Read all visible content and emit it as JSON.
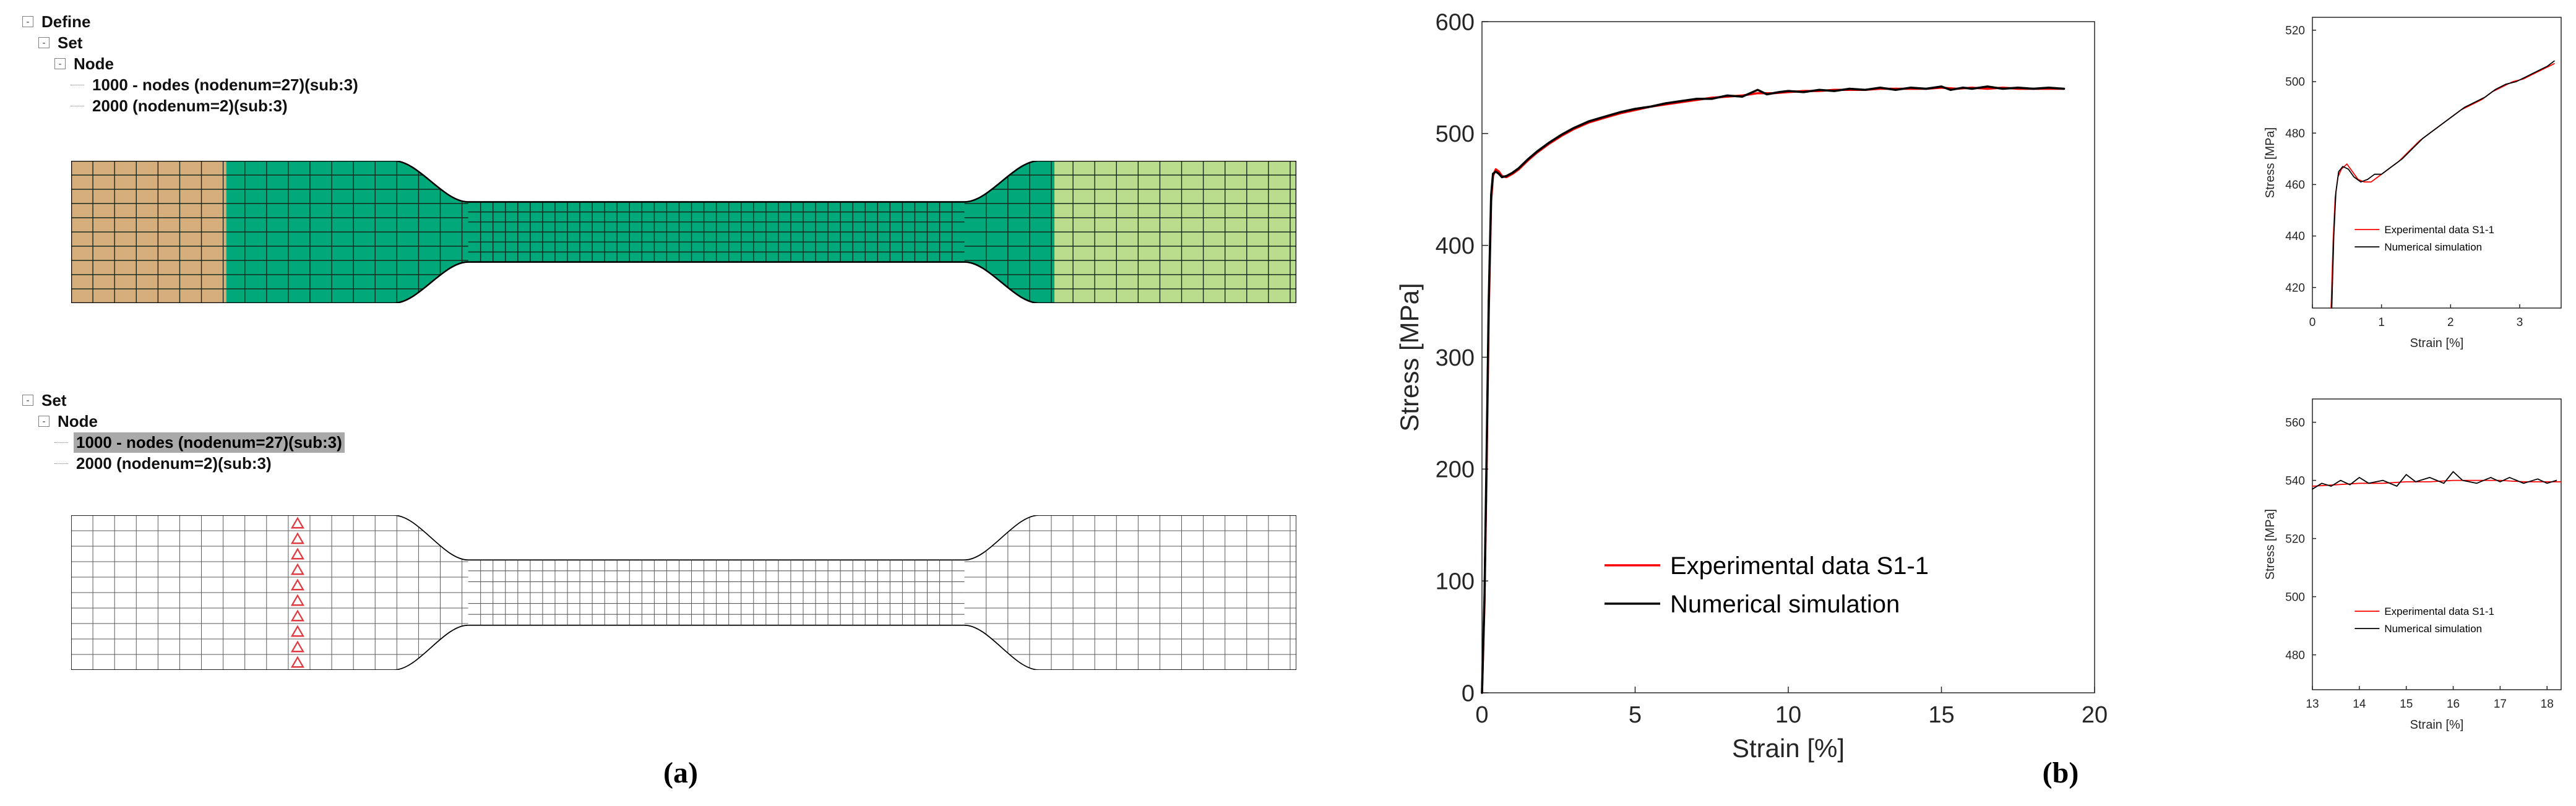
{
  "figure": {
    "label_a": "(a)",
    "label_b": "(b)"
  },
  "trees": [
    {
      "items": [
        {
          "label": "Define",
          "level": 0,
          "box": true,
          "selected": false
        },
        {
          "label": "Set",
          "level": 1,
          "box": true,
          "selected": false
        },
        {
          "label": "Node",
          "level": 2,
          "box": true,
          "selected": false
        },
        {
          "label": "1000 - nodes (nodenum=27)(sub:3)",
          "level": 3,
          "box": false,
          "selected": false
        },
        {
          "label": "2000 (nodenum=2)(sub:3)",
          "level": 3,
          "box": false,
          "selected": false
        }
      ]
    },
    {
      "items": [
        {
          "label": "Set",
          "level": 0,
          "box": true,
          "selected": false
        },
        {
          "label": "Node",
          "level": 1,
          "box": true,
          "selected": false
        },
        {
          "label": "1000 - nodes (nodenum=27)(sub:3)",
          "level": 2,
          "box": false,
          "selected": true
        },
        {
          "label": "2000 (nodenum=2)(sub:3)",
          "level": 2,
          "box": false,
          "selected": false
        }
      ]
    }
  ],
  "mesh": {
    "colors": {
      "left_grip": "#d6ae7b",
      "body": "#00a87a",
      "right_grip": "#b9dd8c",
      "outline": "#000000",
      "bc_marker": "#e0393f",
      "wire_fill": "#ffffff"
    }
  },
  "chart_data": [
    {
      "type": "line",
      "title": "",
      "xlabel": "Strain [%]",
      "ylabel": "Stress [MPa]",
      "xlim": [
        0,
        20
      ],
      "ylim": [
        0,
        600
      ],
      "xticks": [
        0,
        5,
        10,
        15,
        20
      ],
      "yticks": [
        0,
        100,
        200,
        300,
        400,
        500,
        600
      ],
      "legend": {
        "x": 0.2,
        "y": 0.81
      },
      "series": [
        {
          "name": "Experimental data S1-1",
          "color": "#ff0000",
          "points": [
            [
              0,
              0
            ],
            [
              0.08,
              80
            ],
            [
              0.15,
              200
            ],
            [
              0.22,
              340
            ],
            [
              0.3,
              440
            ],
            [
              0.36,
              462
            ],
            [
              0.45,
              468
            ],
            [
              0.55,
              466
            ],
            [
              0.65,
              462
            ],
            [
              0.8,
              461
            ],
            [
              1.0,
              464
            ],
            [
              1.2,
              468
            ],
            [
              1.5,
              476
            ],
            [
              1.8,
              483
            ],
            [
              2.2,
              491
            ],
            [
              2.6,
              498
            ],
            [
              3.0,
              504
            ],
            [
              3.5,
              510
            ],
            [
              4.0,
              514
            ],
            [
              4.5,
              518
            ],
            [
              5.0,
              521
            ],
            [
              5.5,
              524
            ],
            [
              6.0,
              526
            ],
            [
              6.5,
              528
            ],
            [
              7.0,
              530
            ],
            [
              7.5,
              532
            ],
            [
              8.0,
              533
            ],
            [
              8.5,
              534
            ],
            [
              9.0,
              536
            ],
            [
              9.5,
              536
            ],
            [
              10.0,
              537
            ],
            [
              10.5,
              538
            ],
            [
              11.0,
              538
            ],
            [
              11.5,
              539
            ],
            [
              12.0,
              539
            ],
            [
              12.5,
              539
            ],
            [
              13.0,
              540
            ],
            [
              13.5,
              540
            ],
            [
              14.0,
              540
            ],
            [
              14.5,
              540
            ],
            [
              15.0,
              541
            ],
            [
              15.5,
              540
            ],
            [
              16.0,
              541
            ],
            [
              16.5,
              540
            ],
            [
              17.0,
              541
            ],
            [
              17.5,
              540
            ],
            [
              18.0,
              540
            ],
            [
              18.5,
              540
            ],
            [
              19.0,
              540
            ]
          ]
        },
        {
          "name": "Numerical simulation",
          "color": "#000000",
          "points": [
            [
              0,
              0
            ],
            [
              0.08,
              85
            ],
            [
              0.15,
              210
            ],
            [
              0.22,
              350
            ],
            [
              0.3,
              445
            ],
            [
              0.36,
              464
            ],
            [
              0.45,
              466
            ],
            [
              0.55,
              464
            ],
            [
              0.65,
              461
            ],
            [
              0.8,
              462
            ],
            [
              1.0,
              465
            ],
            [
              1.2,
              469
            ],
            [
              1.5,
              477
            ],
            [
              1.8,
              484
            ],
            [
              2.2,
              492
            ],
            [
              2.6,
              499
            ],
            [
              3.0,
              505
            ],
            [
              3.5,
              511
            ],
            [
              4.0,
              515
            ],
            [
              4.5,
              519
            ],
            [
              5.0,
              522
            ],
            [
              5.5,
              524
            ],
            [
              6.0,
              527
            ],
            [
              6.5,
              529
            ],
            [
              7.0,
              531
            ],
            [
              7.5,
              531
            ],
            [
              8.0,
              534
            ],
            [
              8.5,
              533
            ],
            [
              9.0,
              539
            ],
            [
              9.3,
              535
            ],
            [
              9.7,
              537
            ],
            [
              10.0,
              538
            ],
            [
              10.5,
              537
            ],
            [
              11.0,
              539
            ],
            [
              11.5,
              538
            ],
            [
              12.0,
              540
            ],
            [
              12.5,
              539
            ],
            [
              13.0,
              541
            ],
            [
              13.5,
              539
            ],
            [
              14.0,
              541
            ],
            [
              14.5,
              540
            ],
            [
              15.0,
              542
            ],
            [
              15.3,
              539
            ],
            [
              15.7,
              541
            ],
            [
              16.0,
              540
            ],
            [
              16.5,
              542
            ],
            [
              17.0,
              540
            ],
            [
              17.5,
              541
            ],
            [
              18.0,
              540
            ],
            [
              18.5,
              541
            ],
            [
              19.0,
              540
            ]
          ]
        }
      ]
    },
    {
      "type": "line",
      "title": "",
      "xlabel": "Strain [%]",
      "ylabel": "Stress [MPa]",
      "xlim": [
        0,
        3.6
      ],
      "ylim": [
        412,
        525
      ],
      "xticks": [
        0,
        1,
        2,
        3
      ],
      "yticks": [
        420,
        440,
        460,
        480,
        500,
        520
      ],
      "legend": {
        "x": 0.17,
        "y": 0.73
      },
      "series": [
        {
          "name": "Experimental data S1-1",
          "color": "#ff0000",
          "points": [
            [
              0.27,
              412
            ],
            [
              0.3,
              438
            ],
            [
              0.33,
              455
            ],
            [
              0.37,
              463
            ],
            [
              0.42,
              466
            ],
            [
              0.5,
              468
            ],
            [
              0.58,
              465
            ],
            [
              0.66,
              462
            ],
            [
              0.75,
              461
            ],
            [
              0.85,
              461
            ],
            [
              0.95,
              463
            ],
            [
              1.05,
              465
            ],
            [
              1.15,
              467
            ],
            [
              1.25,
              469
            ],
            [
              1.4,
              473
            ],
            [
              1.55,
              477
            ],
            [
              1.7,
              480
            ],
            [
              1.85,
              483
            ],
            [
              2.0,
              486
            ],
            [
              2.15,
              489
            ],
            [
              2.3,
              491
            ],
            [
              2.45,
              493
            ],
            [
              2.6,
              496
            ],
            [
              2.75,
              498
            ],
            [
              2.9,
              500
            ],
            [
              3.05,
              501
            ],
            [
              3.2,
              503
            ],
            [
              3.35,
              505
            ],
            [
              3.5,
              507
            ]
          ]
        },
        {
          "name": "Numerical simulation",
          "color": "#000000",
          "points": [
            [
              0.28,
              412
            ],
            [
              0.31,
              440
            ],
            [
              0.34,
              457
            ],
            [
              0.38,
              465
            ],
            [
              0.44,
              467
            ],
            [
              0.52,
              466
            ],
            [
              0.6,
              463
            ],
            [
              0.7,
              461
            ],
            [
              0.8,
              462
            ],
            [
              0.9,
              464
            ],
            [
              1.0,
              464
            ],
            [
              1.1,
              466
            ],
            [
              1.2,
              468
            ],
            [
              1.3,
              470
            ],
            [
              1.45,
              474
            ],
            [
              1.6,
              478
            ],
            [
              1.75,
              481
            ],
            [
              1.9,
              484
            ],
            [
              2.05,
              487
            ],
            [
              2.2,
              490
            ],
            [
              2.35,
              492
            ],
            [
              2.5,
              494
            ],
            [
              2.65,
              497
            ],
            [
              2.8,
              499
            ],
            [
              2.95,
              500
            ],
            [
              3.1,
              502
            ],
            [
              3.25,
              504
            ],
            [
              3.4,
              506
            ],
            [
              3.5,
              508
            ]
          ]
        }
      ]
    },
    {
      "type": "line",
      "title": "",
      "xlabel": "Strain [%]",
      "ylabel": "Stress [MPa]",
      "xlim": [
        13,
        18.3
      ],
      "ylim": [
        468,
        568
      ],
      "xticks": [
        13,
        14,
        15,
        16,
        17,
        18
      ],
      "yticks": [
        480,
        500,
        520,
        540,
        560
      ],
      "legend": {
        "x": 0.17,
        "y": 0.73
      },
      "series": [
        {
          "name": "Experimental data S1-1",
          "color": "#ff0000",
          "points": [
            [
              13,
              538
            ],
            [
              13.5,
              538.5
            ],
            [
              14,
              539
            ],
            [
              14.5,
              539
            ],
            [
              15,
              539.5
            ],
            [
              15.5,
              539.5
            ],
            [
              16,
              540
            ],
            [
              16.5,
              540
            ],
            [
              17,
              540
            ],
            [
              17.5,
              539.5
            ],
            [
              18,
              539.5
            ],
            [
              18.3,
              539.5
            ]
          ]
        },
        {
          "name": "Numerical simulation",
          "color": "#000000",
          "points": [
            [
              13,
              537
            ],
            [
              13.2,
              539
            ],
            [
              13.4,
              538
            ],
            [
              13.6,
              540
            ],
            [
              13.8,
              538.5
            ],
            [
              14,
              541
            ],
            [
              14.2,
              539
            ],
            [
              14.5,
              540
            ],
            [
              14.8,
              538
            ],
            [
              15,
              542
            ],
            [
              15.2,
              539.5
            ],
            [
              15.5,
              541
            ],
            [
              15.8,
              539
            ],
            [
              16,
              543
            ],
            [
              16.2,
              540
            ],
            [
              16.5,
              539
            ],
            [
              16.8,
              541
            ],
            [
              17,
              539.5
            ],
            [
              17.2,
              541
            ],
            [
              17.5,
              539
            ],
            [
              17.8,
              540.5
            ],
            [
              18,
              539
            ],
            [
              18.2,
              540
            ]
          ]
        }
      ]
    }
  ]
}
